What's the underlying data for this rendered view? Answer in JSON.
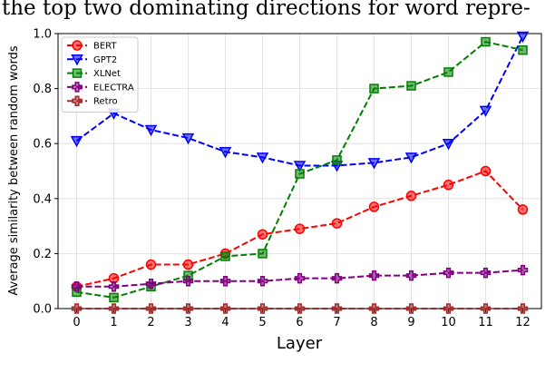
{
  "chart_data": {
    "type": "line",
    "caption": "the top two dominating directions for word repre-",
    "xlabel": "Layer",
    "ylabel": "Average similarity between random words",
    "x": [
      0,
      1,
      2,
      3,
      4,
      5,
      6,
      7,
      8,
      9,
      10,
      11,
      12
    ],
    "xlim": [
      -0.5,
      12.5
    ],
    "xticks": [
      0,
      1,
      2,
      3,
      4,
      5,
      6,
      7,
      8,
      9,
      10,
      11,
      12
    ],
    "ylim": [
      0,
      1
    ],
    "yticks": [
      {
        "value": 0,
        "label": "0.0"
      },
      0.2,
      0.4,
      0.6,
      0.8,
      {
        "value": 1,
        "label": "1.0"
      }
    ],
    "grid": true,
    "legend": "upper left",
    "series": [
      {
        "name": "BERT",
        "color": "#ff0000",
        "marker": "circle",
        "values": [
          0.08,
          0.11,
          0.16,
          0.16,
          0.2,
          0.27,
          0.29,
          0.31,
          0.37,
          0.41,
          0.45,
          0.5,
          0.36
        ]
      },
      {
        "name": "GPT2",
        "color": "#0000ff",
        "marker": "triangle-down",
        "values": [
          0.61,
          0.71,
          0.65,
          0.62,
          0.57,
          0.55,
          0.52,
          0.52,
          0.53,
          0.55,
          0.6,
          0.72,
          0.99
        ]
      },
      {
        "name": "XLNet",
        "color": "#008000",
        "marker": "square",
        "values": [
          0.06,
          0.04,
          0.08,
          0.12,
          0.19,
          0.2,
          0.49,
          0.54,
          0.8,
          0.81,
          0.86,
          0.97,
          0.94
        ]
      },
      {
        "name": "ELECTRA",
        "color": "#800080",
        "marker": "plus",
        "values": [
          0.08,
          0.08,
          0.09,
          0.1,
          0.1,
          0.1,
          0.11,
          0.11,
          0.12,
          0.12,
          0.13,
          0.13,
          0.14
        ]
      },
      {
        "name": "Retro",
        "color": "#a52a2a",
        "marker": "plus",
        "values": [
          0,
          0,
          0,
          0,
          0,
          0,
          0,
          0,
          0,
          0,
          0,
          0,
          0
        ]
      }
    ]
  }
}
